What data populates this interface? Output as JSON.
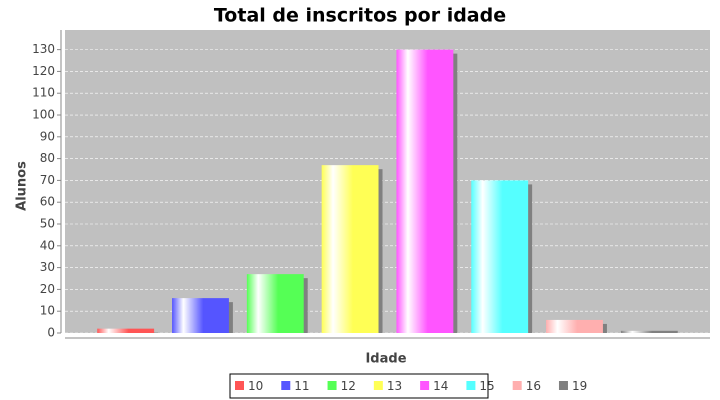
{
  "chart_data": {
    "type": "bar",
    "title": "Total de inscritos por idade",
    "x_label": "Idade",
    "y_label": "Alunos",
    "categories": [
      null
    ],
    "series": [
      {
        "name": "10",
        "color": "#ff5555",
        "values": [
          2
        ]
      },
      {
        "name": "11",
        "color": "#5555ff",
        "values": [
          16
        ]
      },
      {
        "name": "12",
        "color": "#55ff55",
        "values": [
          27
        ]
      },
      {
        "name": "13",
        "color": "#ffff55",
        "values": [
          77
        ]
      },
      {
        "name": "14",
        "color": "#ff55ff",
        "values": [
          130
        ]
      },
      {
        "name": "15",
        "color": "#55ffff",
        "values": [
          70
        ]
      },
      {
        "name": "16",
        "color": "#ffafaf",
        "values": [
          6
        ]
      },
      {
        "name": "19",
        "color": "#808080",
        "values": [
          1
        ]
      }
    ],
    "ylim": [
      0,
      139
    ],
    "yticks": [
      0,
      10,
      20,
      30,
      40,
      50,
      60,
      70,
      80,
      90,
      100,
      110,
      120,
      130
    ],
    "grid": true
  }
}
